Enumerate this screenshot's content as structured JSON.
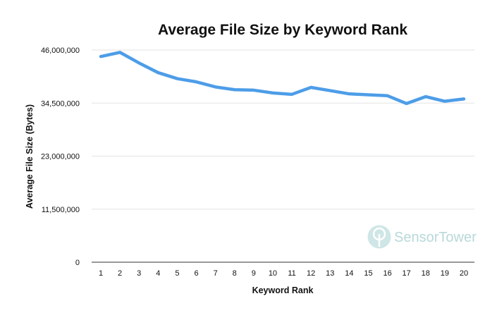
{
  "chart_data": {
    "type": "line",
    "title": "Average File Size by Keyword Rank",
    "xlabel": "Keyword Rank",
    "ylabel": "Average File Size (Bytes)",
    "categories": [
      "1",
      "2",
      "3",
      "4",
      "5",
      "6",
      "7",
      "8",
      "9",
      "10",
      "11",
      "12",
      "13",
      "14",
      "15",
      "16",
      "17",
      "18",
      "19",
      "20"
    ],
    "y_ticks": [
      "0",
      "11,500,000",
      "23,000,000",
      "34,500,000",
      "46,000,000"
    ],
    "ylim": [
      0,
      46000000
    ],
    "grid": true,
    "series": [
      {
        "color": "#4d9de8",
        "values": [
          44600000,
          45500000,
          43200000,
          41100000,
          39800000,
          39100000,
          38000000,
          37400000,
          37300000,
          36700000,
          36400000,
          37900000,
          37200000,
          36500000,
          36300000,
          36100000,
          34400000,
          35900000,
          34900000,
          35400000
        ]
      }
    ]
  },
  "watermark": {
    "brand_part1": "Sensor",
    "brand_part2": "Tower",
    "color": "#b9d8d8"
  }
}
